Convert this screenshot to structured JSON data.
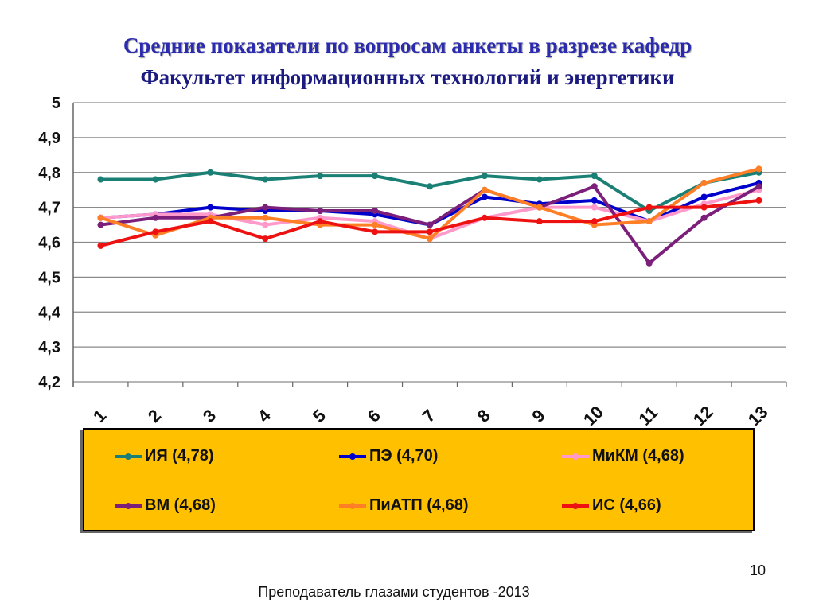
{
  "slide": {
    "title_line1": "Средние показатели по вопросам  анкеты  в разрезе кафедр",
    "title_line2": "Факультет информационных технологий и энергетики",
    "page_number": "10",
    "footer": "Преподаватель глазами студентов -2013"
  },
  "chart_data": {
    "type": "line",
    "title": "",
    "xlabel": "",
    "ylabel": "",
    "categories": [
      "1",
      "2",
      "3",
      "4",
      "5",
      "6",
      "7",
      "8",
      "9",
      "10",
      "11",
      "12",
      "13"
    ],
    "ylim": [
      4.2,
      5.0
    ],
    "yticks": [
      "4,2",
      "4,3",
      "4,4",
      "4,5",
      "4,6",
      "4,7",
      "4,8",
      "4,9",
      "5"
    ],
    "grid": true,
    "legend_position": "bottom",
    "series": [
      {
        "name": "ИЯ (4,78)",
        "color": "#1a8075",
        "values": [
          4.78,
          4.78,
          4.8,
          4.78,
          4.79,
          4.79,
          4.76,
          4.79,
          4.78,
          4.79,
          4.69,
          4.77,
          4.8
        ]
      },
      {
        "name": "ПЭ (4,70)",
        "color": "#0000cc",
        "values": [
          4.67,
          4.68,
          4.7,
          4.69,
          4.69,
          4.68,
          4.65,
          4.73,
          4.71,
          4.72,
          4.66,
          4.73,
          4.77
        ]
      },
      {
        "name": "МиКМ (4,68)",
        "color": "#ff99cc",
        "values": [
          4.67,
          4.68,
          4.68,
          4.65,
          4.67,
          4.66,
          4.61,
          4.67,
          4.7,
          4.7,
          4.66,
          4.71,
          4.75
        ]
      },
      {
        "name": "ВМ (4,68)",
        "color": "#7b1f7b",
        "values": [
          4.65,
          4.67,
          4.67,
          4.7,
          4.69,
          4.69,
          4.65,
          4.75,
          4.7,
          4.76,
          4.54,
          4.67,
          4.76
        ]
      },
      {
        "name": "ПиАТП (4,68)",
        "color": "#ff7f27",
        "values": [
          4.67,
          4.62,
          4.67,
          4.67,
          4.65,
          4.65,
          4.61,
          4.75,
          4.7,
          4.65,
          4.66,
          4.77,
          4.81
        ]
      },
      {
        "name": "ИС (4,66)",
        "color": "#ee1111",
        "values": [
          4.59,
          4.63,
          4.66,
          4.61,
          4.66,
          4.63,
          4.63,
          4.67,
          4.66,
          4.66,
          4.7,
          4.7,
          4.72
        ]
      }
    ]
  }
}
